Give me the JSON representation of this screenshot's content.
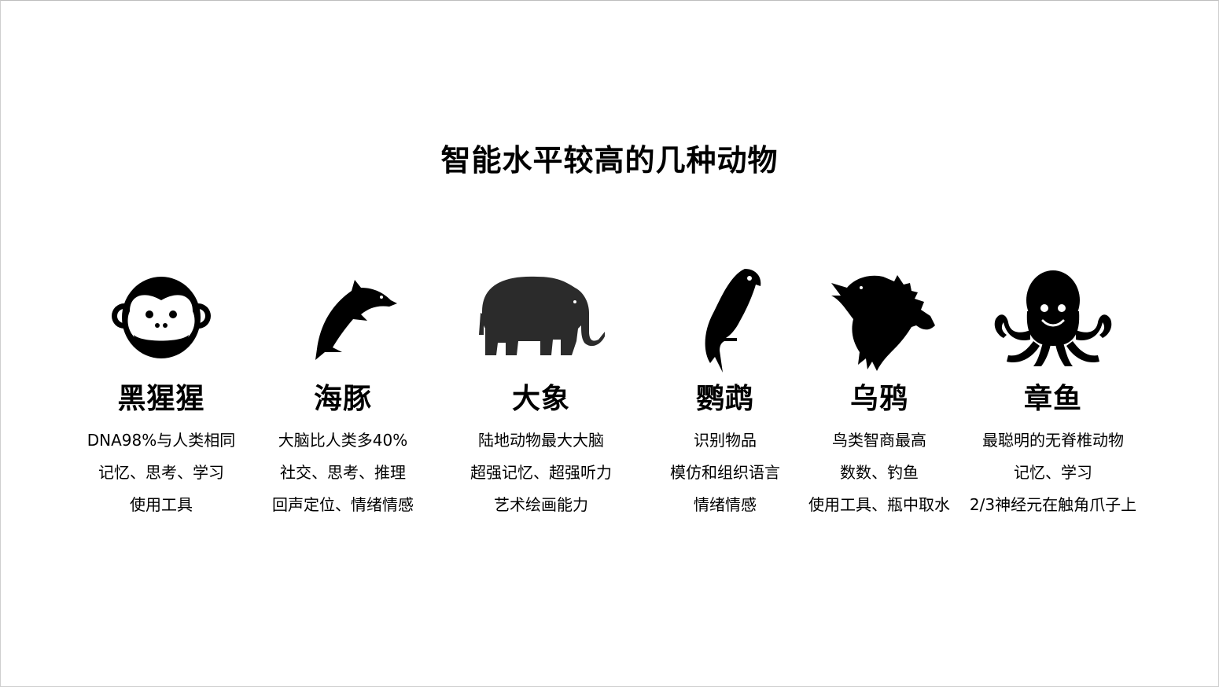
{
  "title": "智能水平较高的几种动物",
  "animals": [
    {
      "icon": "monkey-icon",
      "name": "黑猩猩",
      "lines": [
        "DNA98%与人类相同",
        "记忆、思考、学习",
        "使用工具"
      ]
    },
    {
      "icon": "dolphin-icon",
      "name": "海豚",
      "lines": [
        "大脑比人类多40%",
        "社交、思考、推理",
        "回声定位、情绪情感"
      ]
    },
    {
      "icon": "elephant-icon",
      "name": "大象",
      "lines": [
        "陆地动物最大大脑",
        "超强记忆、超强听力",
        "艺术绘画能力"
      ]
    },
    {
      "icon": "parrot-icon",
      "name": "鹦鹉",
      "lines": [
        "识别物品",
        "模仿和组织语言",
        "情绪情感"
      ]
    },
    {
      "icon": "crow-icon",
      "name": "乌鸦",
      "lines": [
        "鸟类智商最高",
        "数数、钓鱼",
        "使用工具、瓶中取水"
      ]
    },
    {
      "icon": "octopus-icon",
      "name": "章鱼",
      "lines": [
        "最聪明的无脊椎动物",
        "记忆、学习",
        "2/3神经元在触角爪子上"
      ]
    }
  ]
}
